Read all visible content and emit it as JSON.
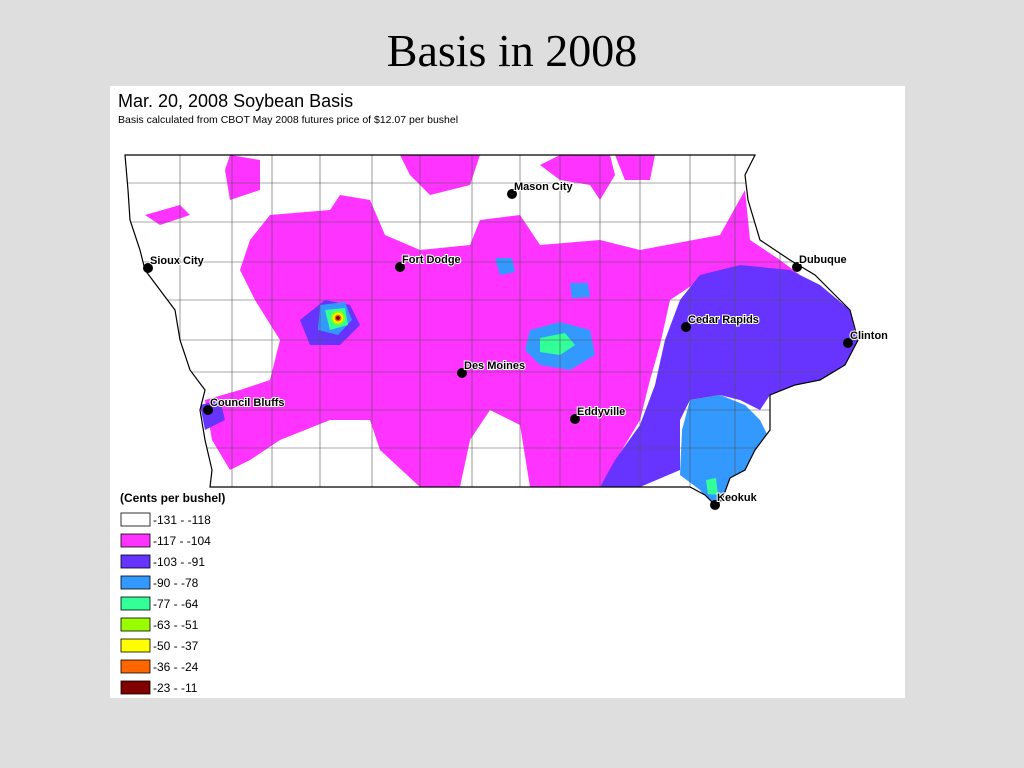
{
  "slide": {
    "title": "Basis in 2008"
  },
  "map": {
    "title": "Mar. 20, 2008 Soybean Basis",
    "subtitle": "Basis calculated from CBOT May 2008 futures price of $12.07 per bushel",
    "cities": [
      "Mason City",
      "Sioux City",
      "Fort Dodge",
      "Dubuque",
      "Cedar Rapids",
      "Clinton",
      "Des Moines",
      "Council Bluffs",
      "Eddyville",
      "Keokuk"
    ],
    "legend": {
      "title": "(Cents per bushel)",
      "items": [
        {
          "label": "-131 - -118",
          "color": "#ffffff"
        },
        {
          "label": "-117 - -104",
          "color": "#ff33ff"
        },
        {
          "label": "-103 - -91",
          "color": "#6633ff"
        },
        {
          "label": "-90 - -78",
          "color": "#3399ff"
        },
        {
          "label": "-77 - -64",
          "color": "#33ff99"
        },
        {
          "label": "-63 - -51",
          "color": "#99ff00"
        },
        {
          "label": "-50 - -37",
          "color": "#ffff00"
        },
        {
          "label": "-36 - -24",
          "color": "#ff6600"
        },
        {
          "label": "-23 - -11",
          "color": "#800000"
        }
      ]
    }
  }
}
